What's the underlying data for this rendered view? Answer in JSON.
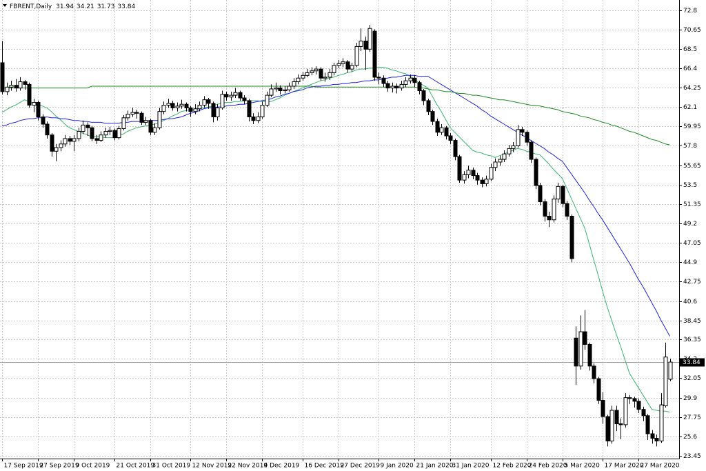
{
  "chart_data": {
    "type": "candlestick",
    "title": "FBRENT,Daily",
    "categories": [
      "17 Sep 2019",
      null,
      null,
      null,
      null,
      null,
      null,
      null,
      "27 Sep 2019",
      null,
      null,
      null,
      null,
      null,
      null,
      null,
      "9 Oct 2019",
      null,
      null,
      null,
      null,
      null,
      null,
      null,
      null,
      "21 Oct 2019",
      null,
      null,
      null,
      null,
      null,
      null,
      null,
      "31 Oct 2019",
      null,
      null,
      null,
      null,
      null,
      null,
      null,
      null,
      "12 Nov 2019",
      null,
      null,
      null,
      null,
      null,
      null,
      null,
      "22 Nov 2019",
      null,
      null,
      null,
      null,
      null,
      null,
      null,
      "4 Dec 2019",
      null,
      null,
      null,
      null,
      null,
      null,
      null,
      null,
      "16 Dec 2019",
      null,
      null,
      null,
      null,
      null,
      null,
      null,
      "27 Dec 2019",
      null,
      null,
      null,
      null,
      null,
      null,
      null,
      null,
      "9 Jan 2020",
      null,
      null,
      null,
      null,
      null,
      null,
      null,
      "21 Jan 2020",
      null,
      null,
      null,
      null,
      null,
      null,
      null,
      "31 Jan 2020",
      null,
      null,
      null,
      null,
      null,
      null,
      null,
      null,
      "12 Feb 2020",
      null,
      null,
      null,
      null,
      null,
      null,
      null,
      "24 Feb 2020",
      null,
      null,
      null,
      null,
      null,
      null,
      null,
      "5 Mar 2020",
      null,
      null,
      null,
      null,
      null,
      null,
      null,
      null,
      "17 Mar 2020",
      null,
      null,
      null,
      null,
      null,
      null,
      null,
      "27 Mar 2020",
      null,
      null,
      null,
      null,
      null,
      null,
      null
    ],
    "open": [
      67.0,
      63.8,
      64.3,
      64.5,
      64.2,
      64.9,
      64.6,
      62.3,
      62.6,
      61.0,
      60.2,
      59.0,
      57.2,
      57.6,
      58.0,
      58.6,
      58.3,
      58.6,
      59.4,
      60.1,
      59.8,
      58.6,
      58.4,
      59.0,
      59.4,
      59.5,
      58.7,
      59.7,
      60.9,
      61.3,
      61.5,
      61.4,
      60.4,
      60.6,
      59.3,
      59.8,
      61.6,
      62.3,
      62.5,
      62.0,
      62.2,
      62.4,
      62.0,
      61.6,
      61.9,
      62.3,
      62.9,
      62.5,
      61.0,
      62.0,
      63.5,
      63.2,
      63.4,
      63.7,
      63.1,
      62.8,
      61.0,
      60.6,
      61.0,
      62.3,
      63.4,
      64.1,
      64.2,
      63.9,
      64.0,
      64.4,
      64.9,
      65.3,
      65.6,
      65.9,
      66.1,
      66.3,
      65.3,
      65.4,
      65.9,
      66.7,
      66.9,
      67.1,
      66.3,
      66.7,
      68.8,
      69.4,
      68.5,
      70.5,
      65.4,
      65.3,
      64.7,
      64.2,
      64.4,
      64.2,
      64.6,
      65.0,
      65.3,
      64.8,
      63.9,
      62.8,
      61.6,
      60.5,
      59.3,
      59.8,
      58.9,
      58.4,
      56.6,
      54.0,
      54.6,
      55.1,
      54.5,
      54.0,
      53.6,
      54.1,
      55.4,
      56.0,
      56.3,
      56.9,
      57.5,
      57.8,
      59.6,
      59.3,
      58.2,
      56.3,
      53.4,
      51.6,
      50.0,
      49.6,
      51.9,
      53.3,
      51.4,
      50.0,
      36.5,
      33.4,
      37.2,
      35.8,
      33.4,
      32.0,
      29.6,
      27.8,
      25.1,
      28.5,
      27.0,
      26.9,
      29.9,
      29.8,
      29.5,
      28.6,
      27.9,
      25.9,
      25.4,
      25.1,
      29.0,
      31.94
    ],
    "high": [
      69.4,
      64.8,
      65.0,
      65.2,
      65.4,
      65.1,
      64.8,
      63.0,
      62.8,
      61.3,
      60.5,
      59.2,
      58.0,
      58.4,
      59.0,
      58.9,
      59.0,
      59.8,
      60.6,
      60.4,
      60.0,
      59.0,
      59.4,
      59.8,
      59.9,
      59.7,
      60.0,
      61.2,
      61.7,
      62.0,
      61.8,
      61.6,
      61.0,
      60.8,
      60.3,
      62.0,
      62.7,
      63.0,
      62.8,
      62.6,
      62.9,
      62.6,
      62.2,
      62.4,
      62.7,
      63.3,
      63.1,
      62.7,
      62.4,
      63.9,
      63.8,
      63.8,
      64.2,
      63.9,
      63.4,
      63.0,
      61.4,
      61.5,
      62.7,
      63.8,
      64.6,
      64.8,
      64.5,
      64.4,
      64.8,
      65.3,
      65.7,
      66.0,
      66.3,
      66.5,
      66.6,
      66.5,
      65.9,
      66.3,
      67.0,
      67.3,
      67.5,
      67.3,
      67.0,
      69.2,
      70.8,
      69.9,
      71.2,
      70.7,
      65.9,
      65.6,
      65.0,
      64.8,
      64.7,
      65.0,
      65.4,
      65.7,
      65.6,
      65.0,
      64.1,
      63.0,
      61.8,
      60.8,
      60.2,
      60.0,
      59.2,
      58.6,
      56.8,
      55.0,
      55.6,
      55.4,
      54.8,
      54.3,
      54.5,
      55.8,
      56.4,
      56.7,
      57.3,
      57.9,
      58.2,
      60.1,
      59.9,
      59.5,
      58.4,
      56.5,
      53.7,
      51.9,
      50.5,
      52.3,
      53.7,
      53.5,
      51.7,
      50.2,
      37.8,
      39.0,
      39.6,
      36.0,
      33.7,
      32.2,
      30.5,
      28.0,
      29.0,
      29.0,
      27.6,
      30.4,
      30.2,
      30.0,
      29.8,
      28.9,
      28.1,
      26.3,
      25.8,
      30.4,
      36.0,
      34.21
    ],
    "low": [
      63.5,
      63.4,
      63.9,
      63.8,
      63.9,
      64.0,
      62.0,
      61.5,
      60.6,
      59.8,
      58.6,
      56.6,
      56.1,
      57.2,
      57.7,
      57.9,
      57.2,
      58.3,
      59.1,
      58.9,
      58.3,
      58.0,
      58.2,
      58.7,
      59.0,
      58.4,
      58.5,
      59.5,
      60.6,
      61.0,
      60.8,
      60.1,
      60.1,
      59.0,
      59.0,
      59.6,
      61.3,
      62.0,
      61.7,
      61.6,
      61.9,
      61.6,
      61.0,
      61.3,
      61.6,
      62.0,
      61.9,
      60.4,
      60.6,
      61.8,
      62.8,
      62.8,
      63.1,
      62.8,
      62.4,
      60.5,
      60.2,
      60.3,
      60.8,
      62.1,
      63.2,
      63.8,
      63.5,
      63.6,
      63.8,
      64.1,
      64.6,
      65.0,
      65.4,
      65.6,
      65.7,
      65.0,
      64.9,
      65.1,
      65.6,
      66.4,
      66.5,
      65.9,
      66.0,
      66.5,
      68.3,
      66.2,
      68.2,
      65.0,
      64.6,
      64.3,
      63.8,
      63.7,
      63.6,
      63.9,
      64.3,
      64.7,
      64.3,
      63.5,
      62.3,
      61.2,
      60.1,
      58.9,
      59.0,
      58.5,
      58.0,
      56.2,
      53.7,
      53.6,
      54.2,
      54.1,
      53.5,
      53.2,
      53.3,
      53.9,
      55.0,
      55.6,
      56.0,
      56.6,
      57.1,
      57.6,
      58.9,
      57.8,
      55.9,
      53.0,
      51.2,
      49.4,
      48.8,
      49.3,
      51.5,
      51.0,
      49.6,
      44.9,
      31.3,
      33.0,
      35.2,
      32.9,
      31.5,
      29.2,
      27.0,
      24.5,
      24.8,
      26.2,
      25.3,
      26.6,
      29.2,
      28.8,
      28.2,
      27.3,
      25.2,
      24.8,
      24.5,
      24.9,
      28.8,
      31.73
    ],
    "close": [
      63.8,
      64.3,
      64.5,
      64.2,
      64.9,
      64.6,
      62.3,
      62.6,
      61.0,
      60.2,
      59.0,
      57.2,
      57.6,
      58.0,
      58.6,
      58.3,
      58.6,
      59.4,
      60.1,
      59.8,
      58.6,
      58.4,
      59.0,
      59.4,
      59.5,
      58.7,
      59.7,
      60.9,
      61.3,
      61.5,
      61.4,
      60.4,
      60.6,
      59.3,
      59.8,
      61.6,
      62.3,
      62.5,
      62.0,
      62.2,
      62.4,
      62.0,
      61.6,
      61.9,
      62.3,
      62.9,
      62.5,
      61.0,
      62.0,
      63.5,
      63.2,
      63.4,
      63.7,
      63.1,
      62.8,
      61.0,
      60.6,
      61.0,
      62.3,
      63.4,
      64.1,
      64.2,
      63.9,
      64.0,
      64.4,
      64.9,
      65.3,
      65.6,
      65.9,
      66.1,
      66.3,
      65.3,
      65.4,
      65.9,
      66.7,
      66.9,
      67.1,
      66.3,
      66.7,
      68.8,
      69.4,
      68.5,
      70.8,
      65.4,
      65.3,
      64.7,
      64.2,
      64.4,
      64.2,
      64.6,
      65.0,
      65.3,
      64.8,
      63.9,
      62.8,
      61.6,
      60.5,
      59.3,
      59.8,
      58.9,
      58.4,
      56.6,
      54.0,
      54.6,
      55.1,
      54.5,
      54.0,
      53.6,
      54.1,
      55.4,
      56.0,
      56.3,
      56.9,
      57.5,
      57.8,
      59.6,
      59.3,
      58.2,
      56.3,
      53.4,
      51.6,
      50.0,
      49.6,
      51.9,
      53.3,
      51.4,
      50.0,
      45.3,
      33.4,
      37.2,
      35.8,
      33.4,
      32.0,
      29.6,
      27.8,
      25.1,
      28.5,
      27.0,
      26.9,
      29.9,
      29.8,
      29.5,
      28.6,
      27.9,
      25.9,
      25.4,
      25.1,
      29.1,
      34.4,
      33.84
    ],
    "lines": [
      {
        "color": "#3cb371",
        "values": [
          61.5,
          61.8,
          62.1,
          62.3,
          62.6,
          62.9,
          62.7,
          62.5,
          62.4,
          62.2,
          62.0,
          61.6,
          61.1,
          60.7,
          60.2,
          59.8,
          59.6,
          59.4,
          59.2,
          59.0,
          58.8,
          58.8,
          58.8,
          58.7,
          58.7,
          58.7,
          58.9,
          59.1,
          59.4,
          59.6,
          59.8,
          59.9,
          60.0,
          60.1,
          60.2,
          60.3,
          60.6,
          60.8,
          61.1,
          61.3,
          61.6,
          61.7,
          61.8,
          61.8,
          61.9,
          62.0,
          62.1,
          62.2,
          62.4,
          62.5,
          62.6,
          62.6,
          62.7,
          62.7,
          62.8,
          62.8,
          62.8,
          62.8,
          62.7,
          62.7,
          62.7,
          62.9,
          63.1,
          63.4,
          63.6,
          63.8,
          64.0,
          64.2,
          64.4,
          64.6,
          64.8,
          65.0,
          65.1,
          65.3,
          65.4,
          65.6,
          65.7,
          65.9,
          66.0,
          66.2,
          66.3,
          66.3,
          66.4,
          66.4,
          66.5,
          66.5,
          66.4,
          66.2,
          66.1,
          65.9,
          65.8,
          65.5,
          65.2,
          64.8,
          64.5,
          64.2,
          63.3,
          62.4,
          61.6,
          60.7,
          59.8,
          59.3,
          58.8,
          58.3,
          57.8,
          57.3,
          57.1,
          57.0,
          56.8,
          56.7,
          56.5,
          56.7,
          56.9,
          57.1,
          57.3,
          57.5,
          57.4,
          57.2,
          57.1,
          56.9,
          56.8,
          56.3,
          55.8,
          55.2,
          54.7,
          54.2,
          53.1,
          52.0,
          50.9,
          49.8,
          48.7,
          47.0,
          45.2,
          43.5,
          41.7,
          40.0,
          38.5,
          37.0,
          35.6,
          34.1,
          32.6,
          31.8,
          31.0,
          30.2,
          29.4,
          28.6,
          28.5,
          28.4,
          28.4,
          28.3
        ]
      },
      {
        "color": "#2020e0",
        "values": [
          60.0,
          60.1,
          60.3,
          60.4,
          60.6,
          60.7,
          60.8,
          60.8,
          60.9,
          60.9,
          61.0,
          60.9,
          60.9,
          60.8,
          60.8,
          60.7,
          60.6,
          60.6,
          60.5,
          60.5,
          60.4,
          60.4,
          60.4,
          60.3,
          60.3,
          60.3,
          60.3,
          60.4,
          60.4,
          60.5,
          60.5,
          60.5,
          60.5,
          60.6,
          60.6,
          60.6,
          60.7,
          60.8,
          60.8,
          60.9,
          61.0,
          61.2,
          61.4,
          61.5,
          61.7,
          61.9,
          62.0,
          62.0,
          62.1,
          62.1,
          62.2,
          62.3,
          62.3,
          62.4,
          62.4,
          62.5,
          62.6,
          62.7,
          62.8,
          62.9,
          63.0,
          63.2,
          63.3,
          63.5,
          63.6,
          63.8,
          63.9,
          64.0,
          64.2,
          64.3,
          64.4,
          64.4,
          64.5,
          64.5,
          64.6,
          64.6,
          64.7,
          64.7,
          64.8,
          64.8,
          64.9,
          65.0,
          65.0,
          65.1,
          65.1,
          65.2,
          65.3,
          65.4,
          65.4,
          65.5,
          65.6,
          65.6,
          65.6,
          65.5,
          65.5,
          65.5,
          65.2,
          64.9,
          64.6,
          64.3,
          64.0,
          63.7,
          63.4,
          63.1,
          62.8,
          62.5,
          62.2,
          61.8,
          61.5,
          61.1,
          60.8,
          60.5,
          60.2,
          59.9,
          59.6,
          59.3,
          59.0,
          58.7,
          58.4,
          58.1,
          57.8,
          57.5,
          57.1,
          56.8,
          56.4,
          56.1,
          55.4,
          54.7,
          54.0,
          53.3,
          52.6,
          51.8,
          51.1,
          50.3,
          49.6,
          48.8,
          48.0,
          47.2,
          46.4,
          45.6,
          44.8,
          43.9,
          43.0,
          42.2,
          41.3,
          40.4,
          39.5,
          38.5,
          37.6,
          36.7
        ]
      },
      {
        "color": "#1e8a1e",
        "values": [
          64.2,
          64.2,
          64.2,
          64.2,
          64.2,
          64.2,
          64.2,
          64.2,
          64.2,
          64.2,
          64.2,
          64.2,
          64.2,
          64.2,
          64.2,
          64.2,
          64.2,
          64.2,
          64.2,
          64.2,
          64.4,
          64.4,
          64.4,
          64.4,
          64.4,
          64.4,
          64.4,
          64.4,
          64.4,
          64.4,
          64.4,
          64.4,
          64.4,
          64.4,
          64.4,
          64.4,
          64.4,
          64.4,
          64.4,
          64.4,
          64.4,
          64.4,
          64.4,
          64.4,
          64.4,
          64.4,
          64.4,
          64.4,
          64.4,
          64.4,
          64.4,
          64.4,
          64.4,
          64.4,
          64.4,
          64.4,
          64.4,
          64.4,
          64.4,
          64.4,
          64.4,
          64.4,
          64.4,
          64.4,
          64.4,
          64.4,
          64.4,
          64.4,
          64.4,
          64.4,
          64.3,
          64.3,
          64.3,
          64.3,
          64.3,
          64.3,
          64.3,
          64.3,
          64.3,
          64.3,
          64.3,
          64.3,
          64.3,
          64.3,
          64.3,
          64.3,
          64.3,
          64.3,
          64.3,
          64.3,
          64.3,
          64.3,
          64.3,
          64.2,
          64.2,
          64.1,
          64.0,
          64.0,
          63.9,
          63.8,
          63.8,
          63.7,
          63.6,
          63.6,
          63.5,
          63.4,
          63.4,
          63.3,
          63.2,
          63.1,
          63.0,
          62.9,
          62.9,
          62.8,
          62.7,
          62.6,
          62.5,
          62.4,
          62.3,
          62.3,
          62.2,
          62.1,
          62.0,
          61.9,
          61.8,
          61.6,
          61.5,
          61.4,
          61.3,
          61.1,
          61.0,
          60.9,
          60.7,
          60.6,
          60.4,
          60.3,
          60.1,
          60.0,
          59.8,
          59.6,
          59.4,
          59.3,
          59.1,
          58.9,
          58.7,
          58.5,
          58.4,
          58.2,
          58.0,
          57.9
        ]
      }
    ],
    "up_color": "#ffffff",
    "down_color": "#000000",
    "ylim": [
      23.15,
      73.95
    ],
    "yticks": [
      72.8,
      70.65,
      68.5,
      66.4,
      64.25,
      62.1,
      59.95,
      57.8,
      55.65,
      53.5,
      51.35,
      49.2,
      47.05,
      44.9,
      42.75,
      40.6,
      38.45,
      36.35,
      34.2,
      32.05,
      29.9,
      27.75,
      25.6,
      23.45
    ],
    "grid": true
  }
}
